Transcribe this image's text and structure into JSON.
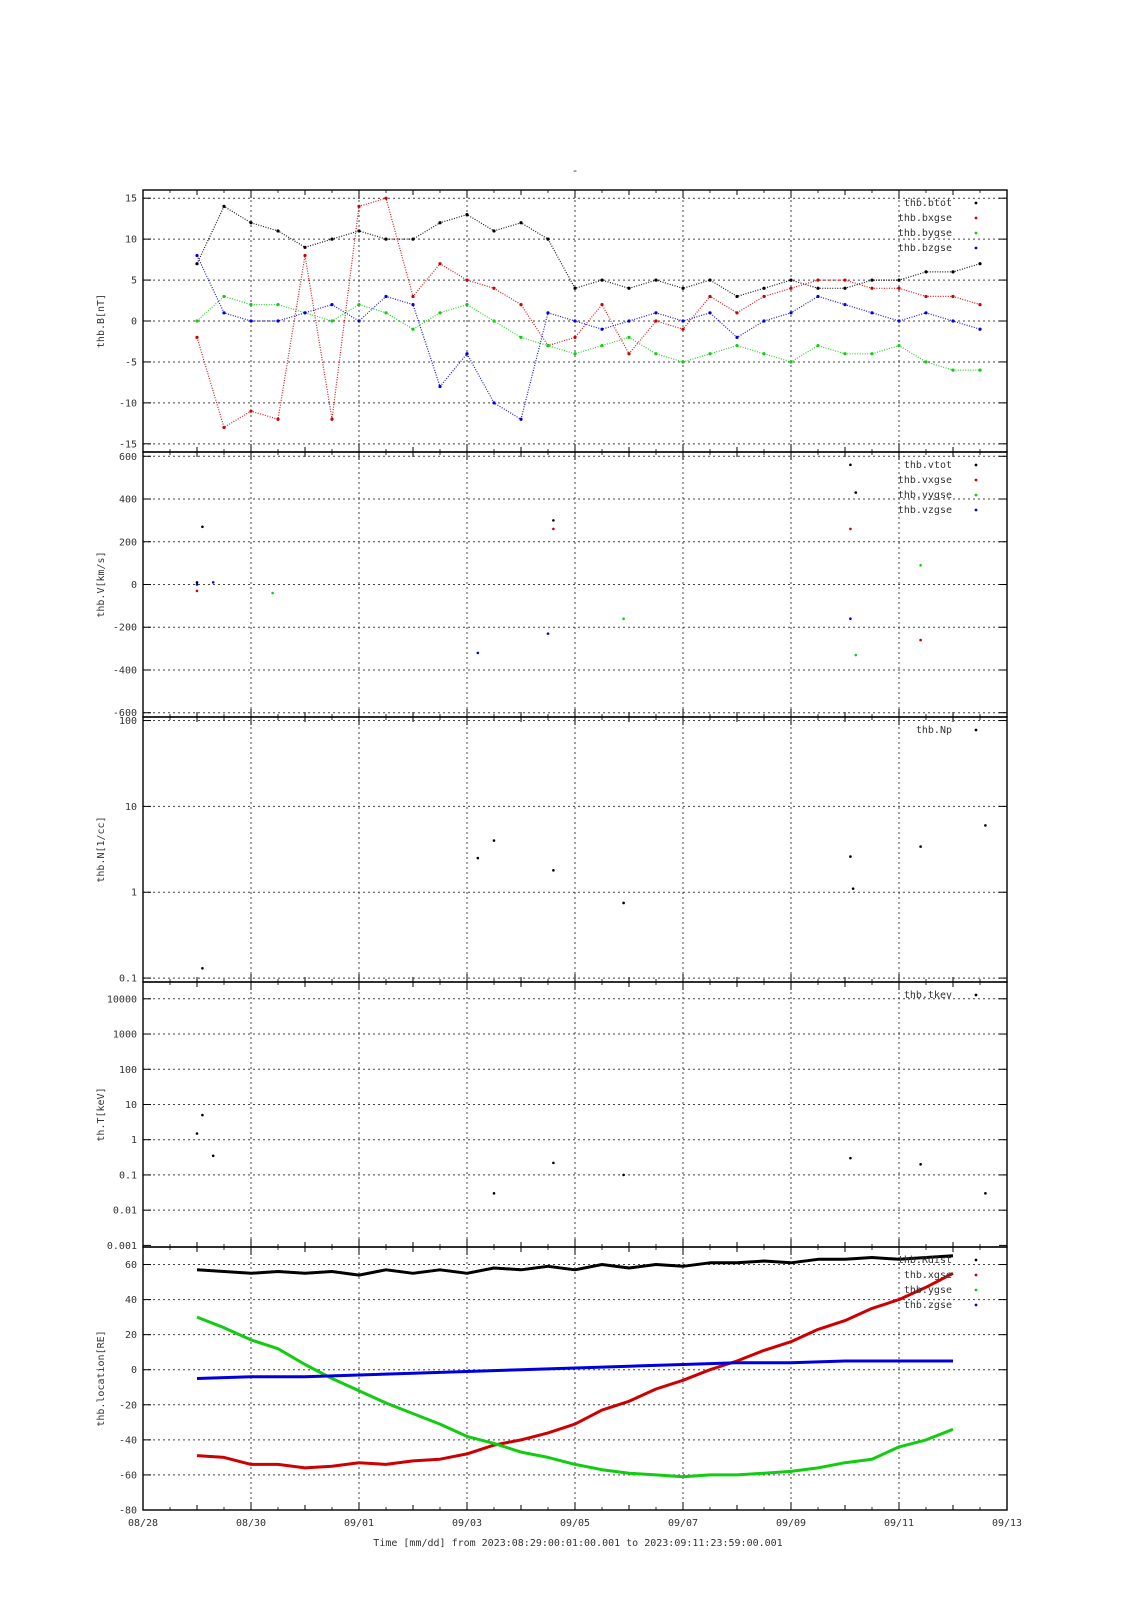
{
  "figure": {
    "title": "-",
    "x_axis_label": "Time [mm/dd]  from 2023:08:29:00:01:00.001  to  2023:09:11:23:59:00.001",
    "x_tick_labels": [
      "08/28",
      "08/30",
      "09/01",
      "09/03",
      "09/05",
      "09/07",
      "09/09",
      "09/11",
      "09/13"
    ]
  },
  "colors": {
    "black": "#000000",
    "red": "#cc0000",
    "green": "#11cc11",
    "blue": "#0000dd",
    "grid": "#444444"
  },
  "chart_data": [
    {
      "type": "scatter",
      "ylabel": "thb.B[nT]",
      "ylim": [
        -16,
        16
      ],
      "yticks": [
        -15,
        -10,
        -5,
        0,
        5,
        10,
        15
      ],
      "ytick_labels": [
        "-15",
        "-10",
        "-5",
        "0",
        "5",
        "10",
        "15"
      ],
      "xlim_days": [
        0,
        16
      ],
      "grid": true,
      "legend_position": "top-right",
      "series": [
        {
          "name": "thb.btot",
          "color": "#000000",
          "x": [
            1.0,
            1.5,
            2.0,
            2.5,
            3.0,
            3.5,
            4.0,
            4.5,
            5.0,
            5.5,
            6.0,
            6.5,
            7.0,
            7.5,
            8.0,
            8.5,
            9.0,
            9.5,
            10.0,
            10.5,
            11.0,
            11.5,
            12.0,
            12.5,
            13.0,
            13.5,
            14.0,
            14.5,
            15.0,
            15.5
          ],
          "y": [
            7,
            14,
            12,
            11,
            9,
            10,
            11,
            10,
            10,
            12,
            13,
            11,
            12,
            10,
            4,
            5,
            4,
            5,
            4,
            5,
            3,
            4,
            5,
            4,
            4,
            5,
            5,
            6,
            6,
            7
          ]
        },
        {
          "name": "thb.bxgse",
          "color": "#cc0000",
          "x": [
            1.0,
            1.5,
            2.0,
            2.5,
            3.0,
            3.5,
            4.0,
            4.5,
            5.0,
            5.5,
            6.0,
            6.5,
            7.0,
            7.5,
            8.0,
            8.5,
            9.0,
            9.5,
            10.0,
            10.5,
            11.0,
            11.5,
            12.0,
            12.5,
            13.0,
            13.5,
            14.0,
            14.5,
            15.0,
            15.5
          ],
          "y": [
            -2,
            -13,
            -11,
            -12,
            8,
            -12,
            14,
            15,
            3,
            7,
            5,
            4,
            2,
            -3,
            -2,
            2,
            -4,
            0,
            -1,
            3,
            1,
            3,
            4,
            5,
            5,
            4,
            4,
            3,
            3,
            2
          ]
        },
        {
          "name": "thb.bygse",
          "color": "#11cc11",
          "x": [
            1.0,
            1.5,
            2.0,
            2.5,
            3.0,
            3.5,
            4.0,
            4.5,
            5.0,
            5.5,
            6.0,
            6.5,
            7.0,
            7.5,
            8.0,
            8.5,
            9.0,
            9.5,
            10.0,
            10.5,
            11.0,
            11.5,
            12.0,
            12.5,
            13.0,
            13.5,
            14.0,
            14.5,
            15.0,
            15.5
          ],
          "y": [
            0,
            3,
            2,
            2,
            1,
            0,
            2,
            1,
            -1,
            1,
            2,
            0,
            -2,
            -3,
            -4,
            -3,
            -2,
            -4,
            -5,
            -4,
            -3,
            -4,
            -5,
            -3,
            -4,
            -4,
            -3,
            -5,
            -6,
            -6
          ]
        },
        {
          "name": "thb.bzgse",
          "color": "#0000dd",
          "x": [
            1.0,
            1.5,
            2.0,
            2.5,
            3.0,
            3.5,
            4.0,
            4.5,
            5.0,
            5.5,
            6.0,
            6.5,
            7.0,
            7.5,
            8.0,
            8.5,
            9.0,
            9.5,
            10.0,
            10.5,
            11.0,
            11.5,
            12.0,
            12.5,
            13.0,
            13.5,
            14.0,
            14.5,
            15.0,
            15.5
          ],
          "y": [
            8,
            1,
            0,
            0,
            1,
            2,
            0,
            3,
            2,
            -8,
            -4,
            -10,
            -12,
            1,
            0,
            -1,
            0,
            1,
            0,
            1,
            -2,
            0,
            1,
            3,
            2,
            1,
            0,
            1,
            0,
            -1
          ]
        }
      ]
    },
    {
      "type": "scatter",
      "ylabel": "thb.V[km/s]",
      "ylim": [
        -620,
        620
      ],
      "yticks": [
        -600,
        -400,
        -200,
        0,
        200,
        400,
        600
      ],
      "ytick_labels": [
        "-600",
        "-400",
        "-200",
        "0",
        "200",
        "400",
        "600"
      ],
      "xlim_days": [
        0,
        16
      ],
      "grid": true,
      "legend_position": "top-right",
      "series": [
        {
          "name": "thb.vtot",
          "color": "#000000",
          "x": [
            1.0,
            1.1,
            7.6,
            13.1,
            13.2
          ],
          "y": [
            10,
            270,
            300,
            560,
            430
          ]
        },
        {
          "name": "thb.vxgse",
          "color": "#cc0000",
          "x": [
            1.0,
            7.6,
            13.1,
            14.4
          ],
          "y": [
            -30,
            260,
            260,
            -260
          ]
        },
        {
          "name": "thb.vygse",
          "color": "#11cc11",
          "x": [
            2.4,
            8.9,
            13.2,
            14.4
          ],
          "y": [
            -40,
            -160,
            -330,
            90
          ]
        },
        {
          "name": "thb.vzgse",
          "color": "#0000dd",
          "x": [
            1.0,
            1.3,
            6.2,
            7.5,
            13.1
          ],
          "y": [
            0,
            10,
            -320,
            -230,
            -160
          ]
        }
      ]
    },
    {
      "type": "scatter",
      "ylabel": "thb.N[1/cc]",
      "yscale": "log",
      "ylim": [
        0.09,
        110
      ],
      "yticks": [
        0.1,
        1,
        10,
        100
      ],
      "ytick_labels": [
        "0.1",
        "1",
        "10",
        "100"
      ],
      "xlim_days": [
        0,
        16
      ],
      "grid": true,
      "legend_position": "top-right",
      "series": [
        {
          "name": "thb.Np",
          "color": "#000000",
          "x": [
            1.1,
            6.2,
            6.5,
            7.6,
            8.9,
            13.1,
            13.15,
            14.4,
            15.6
          ],
          "y": [
            0.13,
            2.5,
            4.0,
            1.8,
            0.75,
            2.6,
            1.1,
            3.4,
            6.0
          ]
        }
      ]
    },
    {
      "type": "scatter",
      "ylabel": "th.T[keV]",
      "yscale": "log",
      "ylim": [
        0.0009,
        30000
      ],
      "yticks": [
        0.001,
        0.01,
        0.1,
        1,
        10,
        100,
        1000,
        10000
      ],
      "ytick_labels": [
        "0.001",
        "0.01",
        "0.1",
        "1",
        "10",
        "100",
        "1000",
        "10000"
      ],
      "xlim_days": [
        0,
        16
      ],
      "grid": true,
      "legend_position": "top-right",
      "series": [
        {
          "name": "thb.tkev",
          "color": "#000000",
          "x": [
            1.0,
            1.1,
            1.3,
            6.5,
            7.6,
            8.9,
            13.1,
            14.4,
            15.6
          ],
          "y": [
            1.5,
            5.0,
            0.35,
            0.03,
            0.22,
            0.1,
            0.3,
            0.2,
            0.03
          ]
        }
      ]
    },
    {
      "type": "line",
      "ylabel": "thb.location[RE]",
      "ylim": [
        -80,
        70
      ],
      "yticks": [
        -80,
        -60,
        -40,
        -20,
        0,
        20,
        40,
        60
      ],
      "ytick_labels": [
        "-80",
        "-60",
        "-40",
        "-20",
        "0",
        "20",
        "40",
        "60"
      ],
      "xlim_days": [
        0,
        16
      ],
      "grid": true,
      "legend_position": "top-right",
      "series": [
        {
          "name": "thb.Rdist",
          "color": "#000000",
          "x": [
            1,
            1.5,
            2,
            2.5,
            3,
            3.5,
            4,
            4.5,
            5,
            5.5,
            6,
            6.5,
            7,
            7.5,
            8,
            8.5,
            9,
            9.5,
            10,
            10.5,
            11,
            11.5,
            12,
            12.5,
            13,
            13.5,
            14,
            14.5,
            15
          ],
          "y": [
            57,
            56,
            55,
            56,
            55,
            56,
            54,
            57,
            55,
            57,
            55,
            58,
            57,
            59,
            57,
            60,
            58,
            60,
            59,
            61,
            61,
            62,
            61,
            63,
            63,
            64,
            63,
            64,
            65
          ]
        },
        {
          "name": "thb.xgse",
          "color": "#cc0000",
          "x": [
            1,
            1.5,
            2,
            2.5,
            3,
            3.5,
            4,
            4.5,
            5,
            5.5,
            6,
            6.5,
            7,
            7.5,
            8,
            8.5,
            9,
            9.5,
            10,
            10.5,
            11,
            11.5,
            12,
            12.5,
            13,
            13.5,
            14,
            14.5,
            15
          ],
          "y": [
            -49,
            -50,
            -54,
            -54,
            -56,
            -55,
            -53,
            -54,
            -52,
            -51,
            -48,
            -43,
            -40,
            -36,
            -31,
            -23,
            -18,
            -11,
            -6,
            0,
            5,
            11,
            16,
            23,
            28,
            35,
            40,
            47,
            55
          ]
        },
        {
          "name": "thb.ygse",
          "color": "#11cc11",
          "x": [
            1,
            1.5,
            2,
            2.5,
            3,
            3.5,
            4,
            4.5,
            5,
            5.5,
            6,
            6.5,
            7,
            7.5,
            8,
            8.5,
            9,
            9.5,
            10,
            10.5,
            11,
            11.5,
            12,
            12.5,
            13,
            13.5,
            14,
            14.5,
            15
          ],
          "y": [
            30,
            24,
            17,
            12,
            3,
            -5,
            -12,
            -19,
            -25,
            -31,
            -38,
            -42,
            -47,
            -50,
            -54,
            -57,
            -59,
            -60,
            -61,
            -60,
            -60,
            -59,
            -58,
            -56,
            -53,
            -51,
            -44,
            -40,
            -34
          ]
        },
        {
          "name": "thb.zgse",
          "color": "#0000dd",
          "x": [
            1,
            2,
            3,
            4,
            5,
            6,
            7,
            8,
            9,
            10,
            11,
            12,
            13,
            14,
            15
          ],
          "y": [
            -5,
            -4,
            -4,
            -3,
            -2,
            -1,
            0,
            1,
            2,
            3,
            4,
            4,
            5,
            5,
            5
          ]
        }
      ]
    }
  ]
}
